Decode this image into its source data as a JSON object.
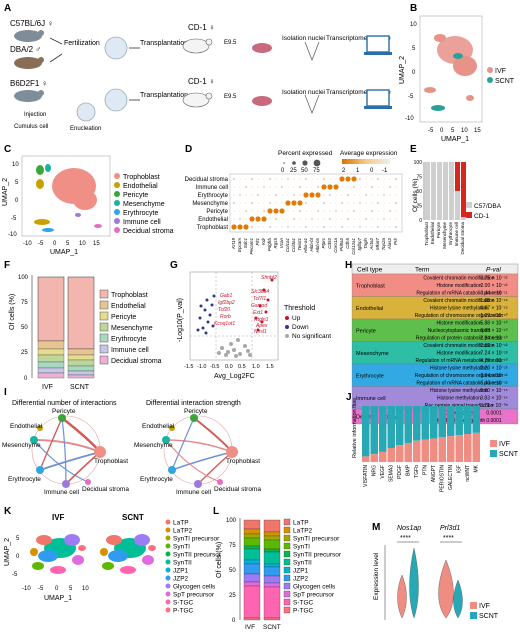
{
  "panel_letters": [
    "A",
    "B",
    "C",
    "D",
    "E",
    "F",
    "G",
    "H",
    "I",
    "J",
    "K",
    "L",
    "M"
  ],
  "panelA": {
    "row1": {
      "strain": "C57BL/6J ♀",
      "step1": "Fertilization",
      "step2": "Transplantation",
      "host": "CD-1 ♀",
      "stage": "E9.5",
      "step3": "Isolation nuclei",
      "step4": "Transcriptome capture"
    },
    "row2": {
      "strain": "DBA/2 ♂"
    },
    "row3": {
      "strain": "B6D2F1 ♀",
      "host": "CD-1 ♀",
      "stage": "E9.5",
      "step2": "Transplantation",
      "inj": "Injection",
      "cumulus": "Cumulus cell",
      "enucleation": "Enucleation",
      "step3": "Isolation nuclei",
      "step4": "Transcriptome capture"
    }
  },
  "panelB": {
    "xlabel": "UMAP_1",
    "ylabel": "UMAP_2",
    "xticks": [
      "-5",
      "0",
      "5",
      "10",
      "15"
    ],
    "yticks": [
      "10",
      "5",
      "0",
      "-5",
      "-10"
    ],
    "legend": [
      {
        "label": "IVF",
        "color": "#e8938a"
      },
      {
        "label": "SCNT",
        "color": "#2aa198"
      }
    ]
  },
  "panelC": {
    "xlabel": "UMAP_1",
    "ylabel": "UMAP_2",
    "xticks": [
      "-10",
      "-5",
      "0",
      "5",
      "10",
      "15"
    ],
    "yticks": [
      "10",
      "5",
      "0",
      "-5",
      "-10"
    ],
    "legend": [
      {
        "label": "Trophoblast",
        "color": "#ef8f86"
      },
      {
        "label": "Endothelial",
        "color": "#c8a000"
      },
      {
        "label": "Pericyte",
        "color": "#3aa635"
      },
      {
        "label": "Mesenchyme",
        "color": "#17b3a3"
      },
      {
        "label": "Erythrocyte",
        "color": "#2ea6e0"
      },
      {
        "label": "Immune cell",
        "color": "#9d79d9"
      },
      {
        "label": "Decidual stroma",
        "color": "#e46cc2"
      }
    ]
  },
  "panelD": {
    "rows": [
      "Decidual stroma",
      "Immune cell",
      "Erythrocyte",
      "Mesenchyme",
      "Pericyte",
      "Endothelial",
      "Trophoblast"
    ],
    "genes": [
      "Krt19",
      "Epcam",
      "Sdc1",
      "Pecam1",
      "Flt1",
      "Kdr",
      "Pdgfrb",
      "Rgs5",
      "Vcan",
      "Col1a1",
      "Col3a1",
      "Twist1",
      "Hba-a1",
      "Hbb-bt",
      "Hbb-bs",
      "Ptprc",
      "Cd52",
      "Coro1a",
      "Prl8a2",
      "Cdh5",
      "Col12a1",
      "Igfbp7",
      "Tagln",
      "Acta2",
      "Mki67",
      "Top2a",
      "Alas2",
      "Prlr"
    ],
    "size_title": "Percent expressed",
    "size_ticks": [
      "0",
      "25",
      "50",
      "75"
    ],
    "color_title": "Average expression",
    "color_ticks": [
      "2",
      "1",
      "0",
      "-1"
    ]
  },
  "panelE": {
    "ylabel": "Of cells (%)",
    "yticks": [
      "0",
      "25",
      "50",
      "75",
      "100"
    ],
    "categories": [
      "Trophoblast",
      "Endothelial",
      "Pericyte",
      "Mesenchyme",
      "Erythrocyte",
      "Immune cell",
      "Decidual stroma"
    ],
    "legend": [
      {
        "label": "C57/DBA",
        "color": "#cfcfcf"
      },
      {
        "label": "CD-1",
        "color": "#d7261e"
      }
    ]
  },
  "panelF": {
    "ylabel": "Of cells (%)",
    "yticks": [
      "0",
      "25",
      "50",
      "75",
      "100"
    ],
    "categories": [
      "IVF",
      "SCNT"
    ],
    "legend": [
      {
        "label": "Trophoblast",
        "color": "#f3b6ae"
      },
      {
        "label": "Endothelial",
        "color": "#e5c690"
      },
      {
        "label": "Pericyte",
        "color": "#e6dc8f"
      },
      {
        "label": "Mesenchyme",
        "color": "#bfd69a"
      },
      {
        "label": "Erythrocyte",
        "color": "#a8d8c0"
      },
      {
        "label": "Immune cell",
        "color": "#c6c6e6"
      },
      {
        "label": "Decidual stroma",
        "color": "#eeb0d4"
      }
    ]
  },
  "panelG": {
    "xlabel": "Avg_Log2FC",
    "ylabel": "-Log10(P_val)",
    "xticks": [
      "-1.5",
      "-1.0",
      "-0.5",
      "0.0",
      "0.5",
      "1.0",
      "1.5"
    ],
    "genes_up": [
      "Sfmbt2",
      "Slc38a4",
      "Tcf7l1",
      "Gsmod",
      "Ext1",
      "Rtgln1",
      "Apex",
      "Nhsl1"
    ],
    "genes_down": [
      "Gab1",
      "Igf2bp2",
      "Tcf20",
      "Rorb",
      "Kcnq1ot1"
    ],
    "legend_title": "Threshold",
    "legend": [
      "Up",
      "Down",
      "No significant"
    ]
  },
  "panelH": {
    "headers": [
      "Cell type",
      "Term",
      "P-val"
    ],
    "groups": [
      {
        "cell": "Trophoblast",
        "color": "#f28d86",
        "rows": [
          [
            "Covalent chromatin modification",
            "3.75 × 10⁻¹²"
          ],
          [
            "Histone modification",
            "2.00 × 10⁻¹²"
          ],
          [
            "Regulation of mRNA catabolic process",
            "3.44 × 10⁻¹¹"
          ]
        ]
      },
      {
        "cell": "Endothelial",
        "color": "#d8b23a",
        "rows": [
          [
            "Covalent chromatin modification",
            "1.68 × 10⁻¹⁶"
          ],
          [
            "Histone lysine methylation",
            "4.67 × 10⁻¹⁵"
          ],
          [
            "Regulation of chromosome organization",
            "1.09 × 10⁻¹⁰"
          ]
        ]
      },
      {
        "cell": "Pericyte",
        "color": "#5fbf4d",
        "rows": [
          [
            "Histone modification",
            "5.88 × 10⁻¹⁰"
          ],
          [
            "Nucleocytoplasmic transport",
            "6.95 × 10⁻¹⁰"
          ],
          [
            "Regulation of protein catabolic process",
            "2.84 × 10⁻¹⁰"
          ]
        ]
      },
      {
        "cell": "Mesenchyme",
        "color": "#2ebda5",
        "rows": [
          [
            "Covalent chromatin modification",
            "2.52 × 10⁻¹²"
          ],
          [
            "Histone modification",
            "7.24 × 10⁻¹³"
          ],
          [
            "Regulation of mRNA metabolic process",
            "4.29 × 10⁻¹⁰"
          ]
        ]
      },
      {
        "cell": "Erythrocyte",
        "color": "#33a9e3",
        "rows": [
          [
            "Histone lysine methylation",
            "2.20 × 10⁻¹²"
          ],
          [
            "Regulation of chromosome organization",
            "2.64 × 10⁻¹²"
          ],
          [
            "Regulation of mRNA catabolic process",
            "5.43 × 10⁻¹²"
          ]
        ]
      },
      {
        "cell": "Immune cell",
        "color": "#a28adb",
        "rows": [
          [
            "Histone lysine methylation",
            "9.60 × 10⁻¹⁵"
          ],
          [
            "Histone methylation",
            "3.83 × 10⁻¹⁴"
          ],
          [
            "Rac protein signal transduction",
            "3.71 × 10⁻⁰⁸"
          ]
        ]
      },
      {
        "cell": "Decidual stroma",
        "color": "#e873c8",
        "rows": [
          [
            "Growth cone",
            "0.0001"
          ],
          [
            "Site of polarized growth",
            "0.0001"
          ]
        ]
      }
    ]
  },
  "panelI": {
    "title_left": "Differential number of interactions",
    "title_right": "Differential interaction strength",
    "nodes": [
      "Pericyte",
      "Endothelial",
      "Mesenchyme",
      "Trophoblast",
      "Erythrocyte",
      "Immune cell",
      "Decidual stroma"
    ]
  },
  "panelJ": {
    "ylabel": "Relative information flow",
    "categories": [
      "VISFATIN",
      "NRG",
      "VEGF",
      "SEMA3",
      "PDGF",
      "BMP",
      "TGFb",
      "PTN",
      "ANGPT",
      "PERIOSTIN",
      "GALECTIN",
      "IGF",
      "ncWNT",
      "MK"
    ],
    "ivf": [
      10,
      14,
      18,
      25,
      30,
      34,
      38,
      40,
      42,
      44,
      46,
      48,
      50,
      52
    ],
    "legend": [
      {
        "label": "IVF",
        "color": "#f08d82"
      },
      {
        "label": "SCNT",
        "color": "#27a9b5"
      }
    ]
  },
  "panelK": {
    "title_left": "IVF",
    "title_right": "SCNT",
    "xlabel": "UMAP_1",
    "ylabel": "UMAP_2",
    "xticks": [
      "-10",
      "-5",
      "0",
      "5",
      "10"
    ],
    "yticks": [
      "5",
      "0",
      "-5"
    ],
    "legend": [
      {
        "label": "LaTP",
        "color": "#f0766b"
      },
      {
        "label": "LaTP2",
        "color": "#d89000"
      },
      {
        "label": "SynTI precursor",
        "color": "#a6a600"
      },
      {
        "label": "SynTI",
        "color": "#5cb800"
      },
      {
        "label": "SynTII precursor",
        "color": "#00b84e"
      },
      {
        "label": "SynTII",
        "color": "#00bf98"
      },
      {
        "label": "JZP1",
        "color": "#00b4d8"
      },
      {
        "label": "JZP2",
        "color": "#2f9cf0"
      },
      {
        "label": "Glycogen cells",
        "color": "#9b7cf5"
      },
      {
        "label": "SpT precursor",
        "color": "#e06ae0"
      },
      {
        "label": "S-TGC",
        "color": "#ff64b0"
      },
      {
        "label": "P-TGC",
        "color": "#ff7080"
      }
    ]
  },
  "panelL": {
    "ylabel": "Of cells (%)",
    "yticks": [
      "0",
      "25",
      "50",
      "75",
      "100"
    ],
    "categories": [
      "IVF",
      "SCNT"
    ],
    "legend": [
      {
        "label": "LaTP",
        "color": "#f0766b"
      },
      {
        "label": "LaTP2",
        "color": "#d89000"
      },
      {
        "label": "SynTI precursor",
        "color": "#a6a600"
      },
      {
        "label": "SynTI",
        "color": "#5cb800"
      },
      {
        "label": "SynTII precursor",
        "color": "#00b84e"
      },
      {
        "label": "SynTII",
        "color": "#00bf98"
      },
      {
        "label": "JZP1",
        "color": "#00b4d8"
      },
      {
        "label": "JZP2",
        "color": "#2f9cf0"
      },
      {
        "label": "Glycogen cells",
        "color": "#9b7cf5"
      },
      {
        "label": "SpT precursor",
        "color": "#e06ae0"
      },
      {
        "label": "S-TGC",
        "color": "#ff64b0"
      },
      {
        "label": "P-TGC",
        "color": "#ff7080"
      }
    ]
  },
  "panelM": {
    "ylabel": "Expression level",
    "genes": [
      "Nos1ap",
      "Prl3d1"
    ],
    "stars": [
      "****",
      "****"
    ],
    "legend": [
      {
        "label": "IVF",
        "color": "#f08d82"
      },
      {
        "label": "SCNT",
        "color": "#27a9b5"
      }
    ]
  },
  "chart_data": [
    {
      "type": "bar",
      "id": "E",
      "ylabel": "Of cells (%)",
      "ylim": [
        0,
        100
      ],
      "categories": [
        "Trophoblast",
        "Endothelial",
        "Pericyte",
        "Mesenchyme",
        "Erythrocyte",
        "Immune cell",
        "Decidual stroma"
      ],
      "series": [
        {
          "name": "C57/DBA",
          "values": [
            100,
            100,
            100,
            100,
            100,
            50,
            5
          ]
        },
        {
          "name": "CD-1",
          "values": [
            0,
            0,
            0,
            0,
            0,
            50,
            95
          ]
        }
      ]
    },
    {
      "type": "bar",
      "id": "J",
      "ylabel": "Relative information flow",
      "ylim": [
        0,
        100
      ],
      "categories": [
        "VISFATIN",
        "NRG",
        "VEGF",
        "SEMA3",
        "PDGF",
        "BMP",
        "TGFb",
        "PTN",
        "ANGPT",
        "PERIOSTIN",
        "GALECTIN",
        "IGF",
        "ncWNT",
        "MK"
      ],
      "series": [
        {
          "name": "IVF",
          "values": [
            10,
            14,
            18,
            25,
            30,
            34,
            38,
            40,
            42,
            44,
            46,
            48,
            50,
            52
          ]
        },
        {
          "name": "SCNT",
          "values": [
            90,
            86,
            82,
            75,
            70,
            66,
            62,
            60,
            58,
            56,
            54,
            52,
            50,
            48
          ]
        }
      ]
    }
  ]
}
